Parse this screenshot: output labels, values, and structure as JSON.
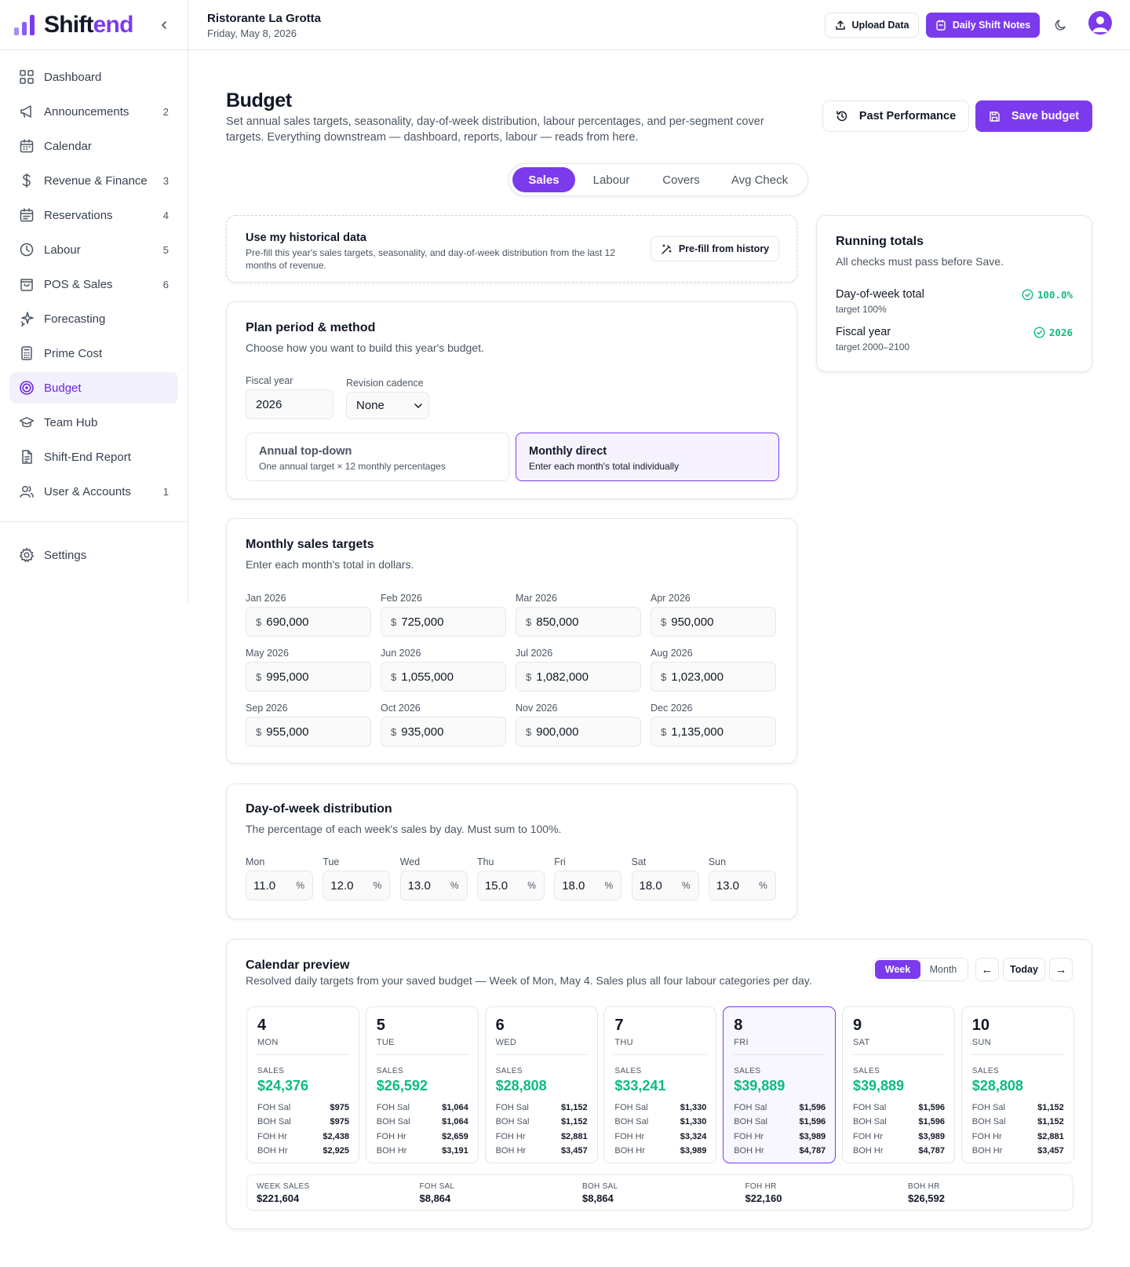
{
  "app": {
    "name_main": "Shift",
    "name_accent": "end"
  },
  "sidebar": {
    "items": [
      {
        "label": "Dashboard",
        "icon": "grid-icon",
        "count": ""
      },
      {
        "label": "Announcements",
        "icon": "megaphone-icon",
        "count": "2"
      },
      {
        "label": "Calendar",
        "icon": "calendar-icon",
        "count": ""
      },
      {
        "label": "Revenue & Finance",
        "icon": "dollar-icon",
        "count": "3"
      },
      {
        "label": "Reservations",
        "icon": "calendar-check-icon",
        "count": "4"
      },
      {
        "label": "Labour",
        "icon": "clock-icon",
        "count": "5"
      },
      {
        "label": "POS & Sales",
        "icon": "shopping-bag-icon",
        "count": "6"
      },
      {
        "label": "Forecasting",
        "icon": "sparkles-icon",
        "count": ""
      },
      {
        "label": "Prime Cost",
        "icon": "calculator-icon",
        "count": ""
      },
      {
        "label": "Budget",
        "icon": "target-icon",
        "count": ""
      },
      {
        "label": "Team Hub",
        "icon": "graduation-cap-icon",
        "count": ""
      },
      {
        "label": "Shift-End Report",
        "icon": "file-text-icon",
        "count": ""
      },
      {
        "label": "User & Accounts",
        "icon": "users-icon",
        "count": "1"
      }
    ],
    "settings": {
      "label": "Settings",
      "icon": "gear-icon"
    }
  },
  "header": {
    "restaurant": "Ristorante La Grotta",
    "date": "Friday, May 8, 2026",
    "upload_label": "Upload Data",
    "notes_label": "Daily Shift Notes"
  },
  "page": {
    "title": "Budget",
    "description": "Set annual sales targets, seasonality, day-of-week distribution, labour percentages, and per-segment cover targets. Everything downstream — dashboard, reports, labour — reads from here.",
    "past_performance_label": "Past Performance",
    "save_label": "Save budget",
    "tabs": [
      "Sales",
      "Labour",
      "Covers",
      "Avg Check"
    ],
    "active_tab": "Sales"
  },
  "historical": {
    "title": "Use my historical data",
    "description": "Pre-fill this year's sales targets, seasonality, and day-of-week distribution from the last 12 months of revenue.",
    "button_label": "Pre-fill from history"
  },
  "plan": {
    "title": "Plan period & method",
    "subtitle": "Choose how you want to build this year's budget.",
    "fiscal_year_label": "Fiscal year",
    "fiscal_year_value": "2026",
    "cadence_label": "Revision cadence",
    "cadence_value": "None",
    "methods": [
      {
        "title": "Annual top-down",
        "subtitle": "One annual target × 12 monthly percentages",
        "selected": false
      },
      {
        "title": "Monthly direct",
        "subtitle": "Enter each month's total individually",
        "selected": true
      }
    ]
  },
  "monthly": {
    "title": "Monthly sales targets",
    "subtitle": "Enter each month's total in dollars.",
    "currency": "$",
    "months": [
      {
        "label": "Jan 2026",
        "value": "690,000"
      },
      {
        "label": "Feb 2026",
        "value": "725,000"
      },
      {
        "label": "Mar 2026",
        "value": "850,000"
      },
      {
        "label": "Apr 2026",
        "value": "950,000"
      },
      {
        "label": "May 2026",
        "value": "995,000"
      },
      {
        "label": "Jun 2026",
        "value": "1,055,000"
      },
      {
        "label": "Jul 2026",
        "value": "1,082,000"
      },
      {
        "label": "Aug 2026",
        "value": "1,023,000"
      },
      {
        "label": "Sep 2026",
        "value": "955,000"
      },
      {
        "label": "Oct 2026",
        "value": "935,000"
      },
      {
        "label": "Nov 2026",
        "value": "900,000"
      },
      {
        "label": "Dec 2026",
        "value": "1,135,000"
      }
    ]
  },
  "dow": {
    "title": "Day-of-week distribution",
    "subtitle": "The percentage of each week's sales by day. Must sum to 100%.",
    "unit": "%",
    "days": [
      {
        "label": "Mon",
        "value": "11.0"
      },
      {
        "label": "Tue",
        "value": "12.0"
      },
      {
        "label": "Wed",
        "value": "13.0"
      },
      {
        "label": "Thu",
        "value": "15.0"
      },
      {
        "label": "Fri",
        "value": "18.0"
      },
      {
        "label": "Sat",
        "value": "18.0"
      },
      {
        "label": "Sun",
        "value": "13.0"
      }
    ]
  },
  "totals": {
    "title": "Running totals",
    "subtitle": "All checks must pass before Save.",
    "checks": [
      {
        "label": "Day-of-week total",
        "target": "target 100%",
        "value": "100.0%",
        "status_color": "#10b981"
      },
      {
        "label": "Fiscal year",
        "target": "target 2000–2100",
        "value": "2026",
        "status_color": "#10b981"
      }
    ]
  },
  "calendar": {
    "title": "Calendar preview",
    "subtitle": "Resolved daily targets from your saved budget — Week of Mon, May 4. Sales plus all four labour categories per day.",
    "views": [
      "Week",
      "Month"
    ],
    "active_view": "Week",
    "today_label": "Today",
    "prev_symbol": "←",
    "next_symbol": "→",
    "sales_label": "SALES",
    "row_labels": [
      "FOH Sal",
      "BOH Sal",
      "FOH Hr",
      "BOH Hr"
    ],
    "days": [
      {
        "num": "4",
        "dow": "MON",
        "sales": "$24,376",
        "vals": [
          "$975",
          "$975",
          "$2,438",
          "$2,925"
        ],
        "today": false
      },
      {
        "num": "5",
        "dow": "TUE",
        "sales": "$26,592",
        "vals": [
          "$1,064",
          "$1,064",
          "$2,659",
          "$3,191"
        ],
        "today": false
      },
      {
        "num": "6",
        "dow": "WED",
        "sales": "$28,808",
        "vals": [
          "$1,152",
          "$1,152",
          "$2,881",
          "$3,457"
        ],
        "today": false
      },
      {
        "num": "7",
        "dow": "THU",
        "sales": "$33,241",
        "vals": [
          "$1,330",
          "$1,330",
          "$3,324",
          "$3,989"
        ],
        "today": false
      },
      {
        "num": "8",
        "dow": "FRI",
        "sales": "$39,889",
        "vals": [
          "$1,596",
          "$1,596",
          "$3,989",
          "$4,787"
        ],
        "today": true
      },
      {
        "num": "9",
        "dow": "SAT",
        "sales": "$39,889",
        "vals": [
          "$1,596",
          "$1,596",
          "$3,989",
          "$4,787"
        ],
        "today": false
      },
      {
        "num": "10",
        "dow": "SUN",
        "sales": "$28,808",
        "vals": [
          "$1,152",
          "$1,152",
          "$2,881",
          "$3,457"
        ],
        "today": false
      }
    ],
    "week_totals": [
      {
        "label": "WEEK SALES",
        "value": "$221,604"
      },
      {
        "label": "FOH SAL",
        "value": "$8,864"
      },
      {
        "label": "BOH SAL",
        "value": "$8,864"
      },
      {
        "label": "FOH HR",
        "value": "$22,160"
      },
      {
        "label": "BOH HR",
        "value": "$26,592"
      }
    ]
  },
  "colors": {
    "accent": "#7c3aed",
    "success": "#10b981"
  }
}
